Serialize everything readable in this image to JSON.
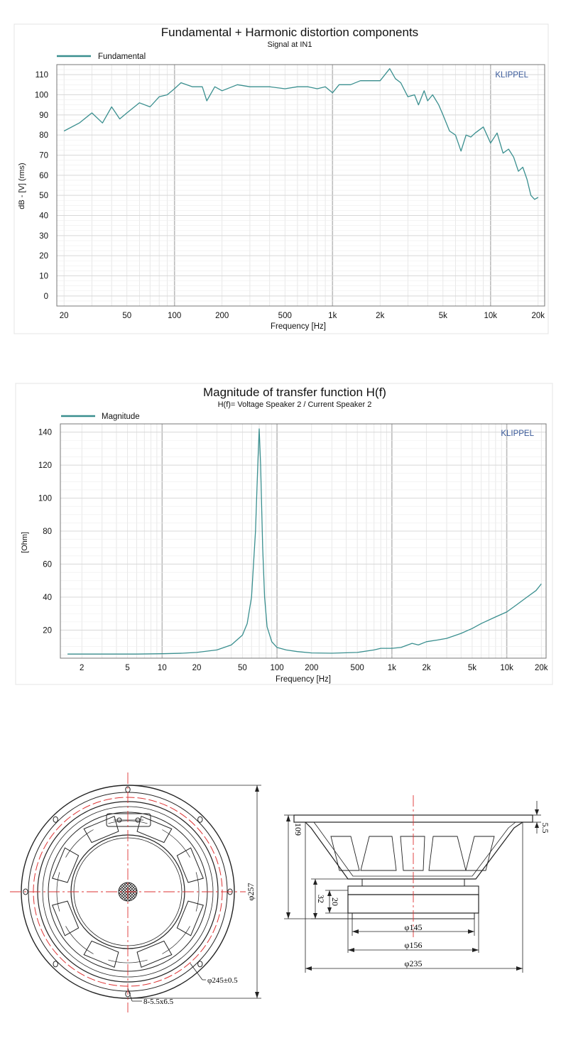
{
  "chart_data": [
    {
      "type": "line",
      "title": "Fundamental + Harmonic distortion components",
      "subtitle": "Signal at IN1",
      "xlabel": "Frequency [Hz]",
      "ylabel": "dB - [V] (rms)",
      "xscale": "log",
      "xlim": [
        18,
        22000
      ],
      "ylim": [
        -5,
        115
      ],
      "grid": true,
      "legend_position": "top-left",
      "watermark": "KLIPPEL",
      "x_ticks": [
        20,
        50,
        100,
        200,
        500,
        1000,
        2000,
        5000,
        10000,
        20000
      ],
      "x_tick_labels": [
        "20",
        "50",
        "100",
        "200",
        "500",
        "1k",
        "2k",
        "5k",
        "10k",
        "20k"
      ],
      "y_ticks": [
        0,
        10,
        20,
        30,
        40,
        50,
        60,
        70,
        80,
        90,
        100,
        110
      ],
      "y_tick_labels": [
        "0",
        "10",
        "20",
        "30",
        "40",
        "50",
        "60",
        "70",
        "80",
        "90",
        "100",
        "110"
      ],
      "series": [
        {
          "name": "Fundamental",
          "color": "#3a8f8f",
          "x": [
            20,
            25,
            30,
            35,
            40,
            45,
            50,
            60,
            70,
            80,
            90,
            100,
            110,
            130,
            150,
            160,
            180,
            200,
            250,
            300,
            400,
            500,
            600,
            700,
            800,
            900,
            1000,
            1100,
            1300,
            1500,
            2000,
            2300,
            2500,
            2700,
            3000,
            3300,
            3500,
            3800,
            4000,
            4300,
            4700,
            5000,
            5500,
            6000,
            6500,
            7000,
            7500,
            8000,
            9000,
            10000,
            11000,
            12000,
            13000,
            14000,
            15000,
            16000,
            17000,
            18000,
            19000,
            20000
          ],
          "y": [
            82,
            86,
            91,
            86,
            94,
            88,
            91,
            96,
            94,
            99,
            100,
            103,
            106,
            104,
            104,
            97,
            104,
            102,
            105,
            104,
            104,
            103,
            104,
            104,
            103,
            104,
            101,
            105,
            105,
            107,
            107,
            113,
            108,
            106,
            99,
            100,
            95,
            102,
            97,
            100,
            95,
            90,
            82,
            80,
            72,
            80,
            79,
            81,
            84,
            76,
            81,
            71,
            73,
            69,
            62,
            64,
            58,
            50,
            48,
            49
          ]
        }
      ]
    },
    {
      "type": "line",
      "title": "Magnitude of transfer function H(f)",
      "subtitle": "H(f)= Voltage Speaker 2 / Current Speaker 2",
      "xlabel": "Frequency [Hz]",
      "ylabel": "[Ohm]",
      "xscale": "log",
      "xlim": [
        1.3,
        22000
      ],
      "ylim": [
        3,
        145
      ],
      "grid": true,
      "legend_position": "top-left",
      "watermark": "KLIPPEL",
      "x_ticks": [
        2,
        5,
        10,
        20,
        50,
        100,
        200,
        500,
        1000,
        2000,
        5000,
        10000,
        20000
      ],
      "x_tick_labels": [
        "2",
        "5",
        "10",
        "20",
        "50",
        "100",
        "200",
        "500",
        "1k",
        "2k",
        "5k",
        "10k",
        "20k"
      ],
      "y_ticks": [
        20,
        40,
        60,
        80,
        100,
        120,
        140
      ],
      "y_tick_labels": [
        "20",
        "40",
        "60",
        "80",
        "100",
        "120",
        "140"
      ],
      "series": [
        {
          "name": "Magnitude",
          "color": "#3a8f8f",
          "x": [
            1.5,
            3,
            6,
            10,
            15,
            20,
            30,
            40,
            50,
            55,
            60,
            65,
            68,
            70,
            72,
            75,
            78,
            82,
            90,
            100,
            120,
            150,
            200,
            300,
            500,
            700,
            800,
            1000,
            1200,
            1500,
            1700,
            2000,
            2500,
            3000,
            4000,
            5000,
            6000,
            8000,
            10000,
            12000,
            15000,
            18000,
            20000
          ],
          "y": [
            5.5,
            5.5,
            5.5,
            5.7,
            6,
            6.5,
            8,
            11,
            17,
            24,
            40,
            80,
            120,
            142,
            120,
            70,
            40,
            22,
            13,
            9.5,
            8,
            7,
            6.2,
            6,
            6.5,
            8,
            9,
            9,
            9.5,
            12,
            11,
            13,
            14,
            15,
            18,
            21,
            24,
            28,
            31,
            35,
            40,
            44,
            48
          ]
        }
      ]
    }
  ],
  "drawing": {
    "front_view": {
      "dim_outer": "φ257",
      "dim_bolt_circle": "φ245±0.5",
      "dim_holes": "8-5.5x6.5"
    },
    "side_view": {
      "dim_height": "109",
      "dim_flange": "5.5",
      "dim_magnet_total": "32",
      "dim_magnet": "20",
      "dim_145": "φ145",
      "dim_156": "φ156",
      "dim_235": "φ235"
    }
  }
}
